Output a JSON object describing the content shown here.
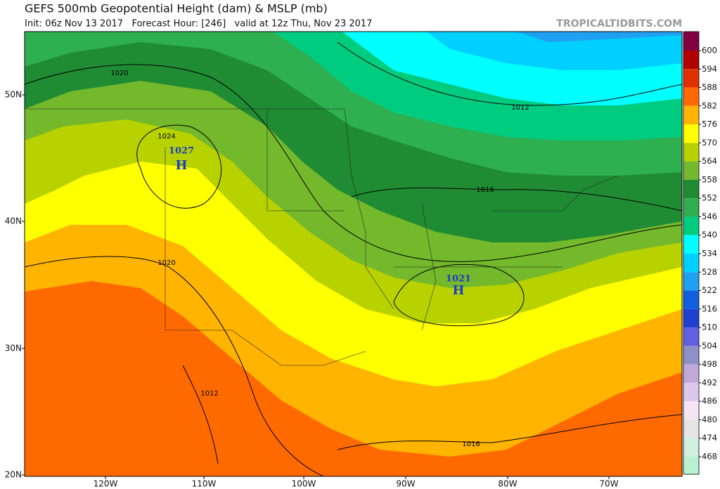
{
  "header": {
    "title": "GEFS 500mb Geopotential Height (dam) & MSLP (mb)",
    "subtitle": "Init: 06z Nov 13 2017   Forecast Hour: [246]   valid at 12z Thu, Nov 23 2017",
    "credit": "TROPICALTIDBITS.COM"
  },
  "colorbar": {
    "levels": [
      600,
      594,
      588,
      582,
      576,
      570,
      564,
      558,
      552,
      546,
      540,
      534,
      528,
      522,
      516,
      510,
      504,
      498,
      492,
      486,
      480,
      474,
      468
    ],
    "colors": [
      "#800040",
      "#b00000",
      "#e03000",
      "#ff6a00",
      "#ffb400",
      "#ffff00",
      "#b8d200",
      "#74b82c",
      "#1f8c34",
      "#2fb050",
      "#00cc80",
      "#00ffff",
      "#00d0ff",
      "#20a0f0",
      "#1060e0",
      "#2040d0",
      "#6060e0",
      "#9090c8",
      "#c0a8d8",
      "#dcc8ec",
      "#f4e4f4",
      "#e4e4e4",
      "#d0f0e0",
      "#b8f0d0"
    ]
  },
  "axes": {
    "lat_labels": [
      "50N",
      "40N",
      "30N",
      "20N"
    ],
    "lon_labels": [
      "120W",
      "110W",
      "100W",
      "90W",
      "80W",
      "70W"
    ]
  },
  "annotations": [
    {
      "text": "1020"
    },
    {
      "text": "1024"
    },
    {
      "text": "1027"
    },
    {
      "text": "H"
    },
    {
      "text": "1012"
    },
    {
      "text": "1016"
    },
    {
      "text": "1020"
    },
    {
      "text": "1021"
    },
    {
      "text": "H"
    },
    {
      "text": "1012"
    },
    {
      "text": "1016"
    }
  ]
}
